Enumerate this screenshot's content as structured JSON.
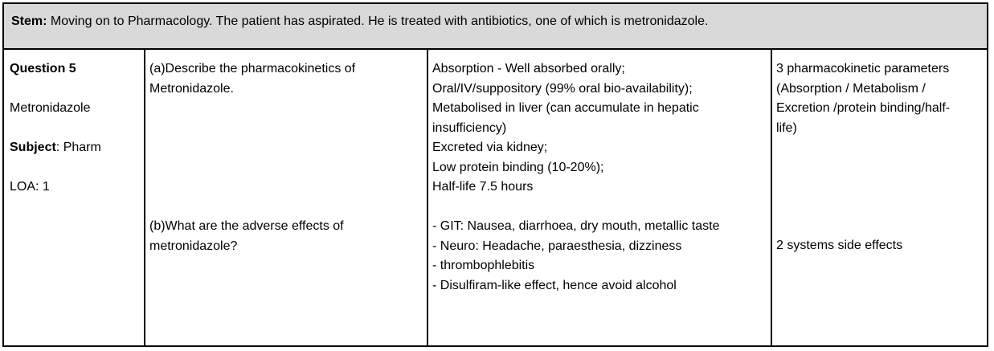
{
  "stem": {
    "label": "Stem:",
    "text": " Moving on to Pharmacology. The patient has aspirated. He is treated with antibiotics, one of which is metronidazole."
  },
  "meta": {
    "question": "Question 5",
    "topic": "Metronidazole",
    "subject_label": "Subject",
    "subject_value": ": Pharm",
    "loa": "LOA: 1"
  },
  "parts": [
    {
      "question_lines": [
        "(a)Describe the pharmacokinetics of",
        "Metronidazole."
      ],
      "answer_lines": [
        "Absorption - Well absorbed orally;",
        "Oral/IV/suppository (99% oral bio-availability);",
        "Metabolised in liver (can accumulate in hepatic",
        "insufficiency)",
        "Excreted via kidney;",
        "Low protein binding (10-20%);",
        "Half-life 7.5 hours"
      ],
      "marking_lines": [
        "3 pharmacokinetic parameters",
        "(Absorption / Metabolism /",
        "Excretion /protein binding/half-",
        "life)"
      ]
    },
    {
      "question_lines": [
        "(b)What are the adverse effects of",
        "metronidazole?"
      ],
      "answer_lines": [
        "- GIT: Nausea, diarrhoea, dry mouth, metallic taste",
        "- Neuro: Headache, paraesthesia, dizziness",
        "- thrombophlebitis",
        "- Disulfiram-like effect, hence avoid alcohol"
      ],
      "marking_lines": [
        "2 systems side effects"
      ]
    }
  ]
}
